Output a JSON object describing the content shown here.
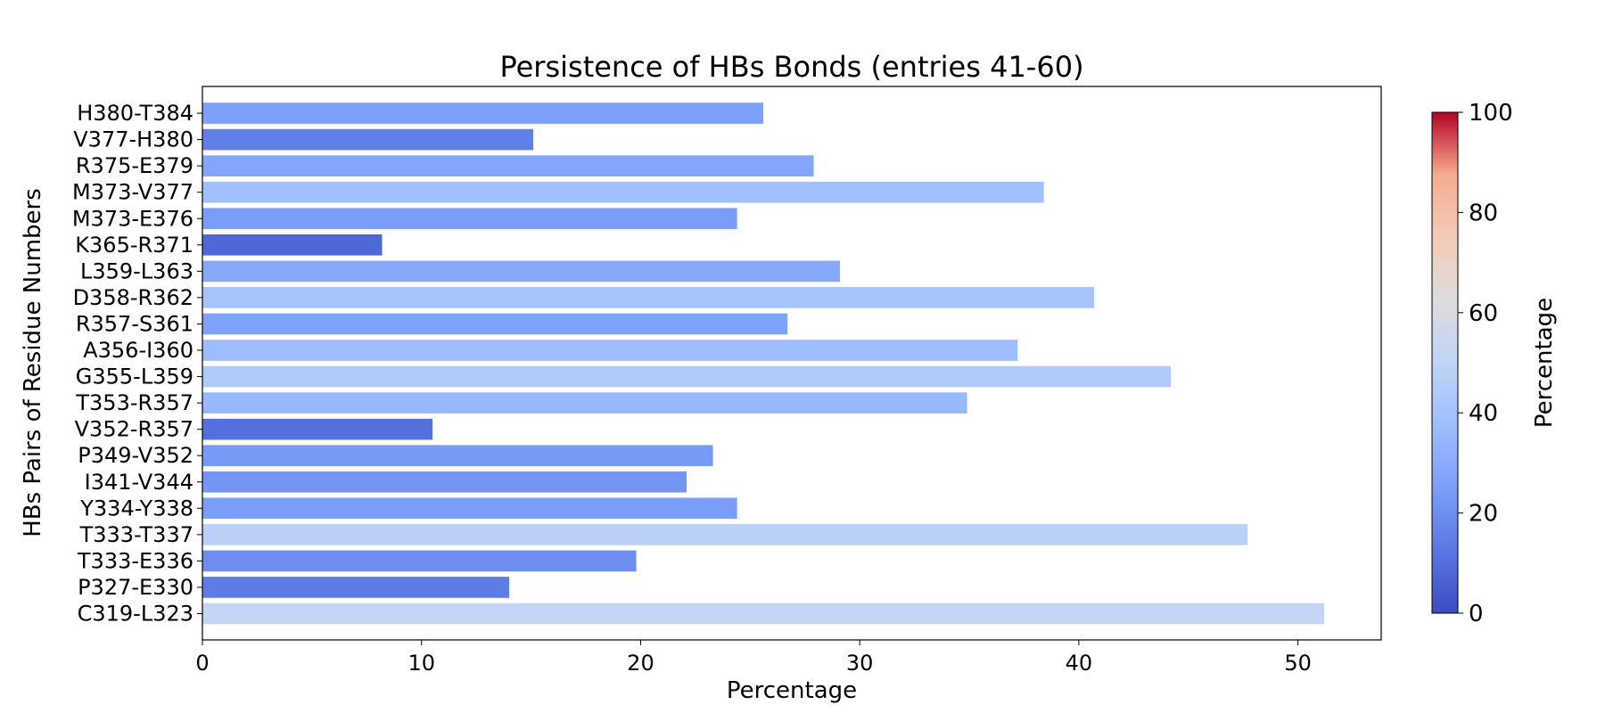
{
  "chart_data": {
    "type": "bar",
    "orientation": "horizontal",
    "title": "Persistence of HBs Bonds (entries 41-60)",
    "xlabel": "Percentage",
    "ylabel": "HBs Pairs of Residue Numbers",
    "xlim": [
      0,
      53.8
    ],
    "x_ticks": [
      "0",
      "10",
      "20",
      "30",
      "40",
      "50"
    ],
    "grid": false,
    "categories": [
      "C319-L323",
      "P327-E330",
      "T333-E336",
      "T333-T337",
      "Y334-Y338",
      "I341-V344",
      "P349-V352",
      "V352-R357",
      "T353-R357",
      "G355-L359",
      "A356-I360",
      "R357-S361",
      "D358-R362",
      "L359-L363",
      "K365-R371",
      "M373-E376",
      "M373-V377",
      "R375-E379",
      "V377-H380",
      "H380-T384"
    ],
    "values": [
      51.2,
      14.0,
      19.8,
      47.7,
      24.4,
      22.1,
      23.3,
      10.5,
      34.9,
      44.2,
      37.2,
      26.7,
      40.7,
      29.1,
      8.2,
      24.4,
      38.4,
      27.9,
      15.1,
      25.6
    ],
    "colorbar": {
      "label": "Percentage",
      "colormap": "coolwarm",
      "range": [
        0,
        100
      ],
      "ticks": [
        "0",
        "20",
        "40",
        "60",
        "80",
        "100"
      ]
    }
  }
}
